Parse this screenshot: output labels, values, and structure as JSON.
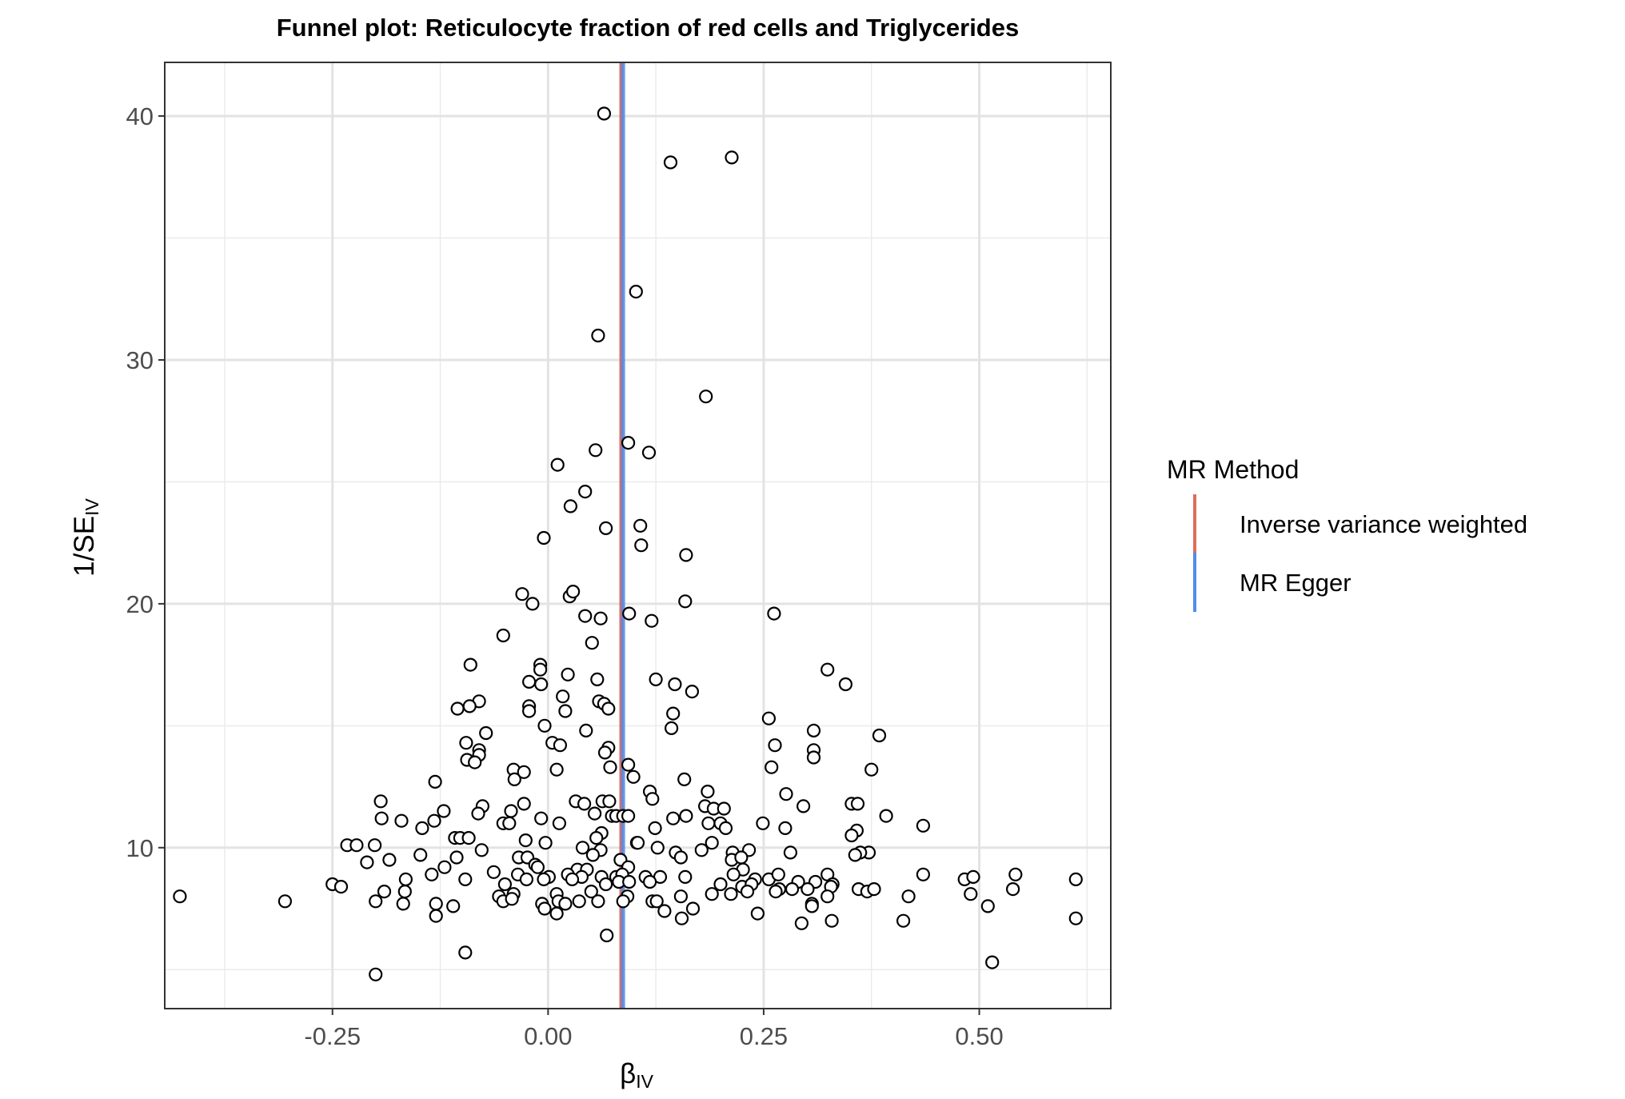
{
  "chart_data": {
    "type": "scatter",
    "title": "Funnel plot: Reticulocyte fraction of red cells and Triglycerides",
    "xlabel": {
      "main": "β",
      "sub": "IV"
    },
    "ylabel": {
      "main": "1/SE",
      "sub": "IV"
    },
    "xlim": [
      -0.4445,
      0.6525
    ],
    "ylim": [
      3.4,
      42.2
    ],
    "x_ticks": [
      -0.25,
      0.0,
      0.25,
      0.5
    ],
    "x_tick_labels": [
      "-0.25",
      "0.00",
      "0.25",
      "0.50"
    ],
    "y_ticks": [
      10,
      20,
      30,
      40
    ],
    "y_tick_labels": [
      "10",
      "20",
      "30",
      "40"
    ],
    "grid": true,
    "legend": {
      "title": "MR Method",
      "position": "right",
      "items": [
        {
          "label": "Inverse variance weighted",
          "color": "#E06C5C"
        },
        {
          "label": "MR Egger",
          "color": "#4F8DEB"
        }
      ]
    },
    "reference_lines": [
      {
        "method": "Inverse variance weighted",
        "x": 0.085,
        "color": "#E06C5C"
      },
      {
        "method": "MR Egger",
        "x": 0.087,
        "color": "#4F8DEB"
      }
    ],
    "points": [
      [
        0.065,
        40.1
      ],
      [
        0.142,
        38.1
      ],
      [
        0.213,
        38.3
      ],
      [
        0.102,
        32.8
      ],
      [
        0.058,
        31.0
      ],
      [
        0.183,
        28.5
      ],
      [
        0.093,
        26.6
      ],
      [
        0.117,
        26.2
      ],
      [
        0.055,
        26.3
      ],
      [
        0.011,
        25.7
      ],
      [
        0.043,
        24.6
      ],
      [
        0.026,
        24.0
      ],
      [
        0.067,
        23.1
      ],
      [
        0.107,
        23.2
      ],
      [
        -0.005,
        22.7
      ],
      [
        0.108,
        22.4
      ],
      [
        0.16,
        22.0
      ],
      [
        -0.03,
        20.4
      ],
      [
        -0.018,
        20.0
      ],
      [
        0.025,
        20.3
      ],
      [
        0.029,
        20.5
      ],
      [
        0.043,
        19.5
      ],
      [
        0.061,
        19.4
      ],
      [
        0.094,
        19.6
      ],
      [
        0.12,
        19.3
      ],
      [
        0.159,
        20.1
      ],
      [
        0.262,
        19.6
      ],
      [
        -0.052,
        18.7
      ],
      [
        0.051,
        18.4
      ],
      [
        -0.09,
        17.5
      ],
      [
        -0.009,
        17.5
      ],
      [
        -0.009,
        17.3
      ],
      [
        0.023,
        17.1
      ],
      [
        0.324,
        17.3
      ],
      [
        -0.022,
        16.8
      ],
      [
        -0.008,
        16.7
      ],
      [
        0.057,
        16.9
      ],
      [
        0.125,
        16.9
      ],
      [
        0.147,
        16.7
      ],
      [
        0.345,
        16.7
      ],
      [
        0.017,
        16.2
      ],
      [
        0.167,
        16.4
      ],
      [
        -0.08,
        16.0
      ],
      [
        -0.091,
        15.8
      ],
      [
        -0.105,
        15.7
      ],
      [
        -0.022,
        15.8
      ],
      [
        -0.022,
        15.6
      ],
      [
        0.02,
        15.6
      ],
      [
        0.059,
        16.0
      ],
      [
        0.065,
        15.9
      ],
      [
        0.07,
        15.7
      ],
      [
        0.145,
        15.5
      ],
      [
        0.256,
        15.3
      ],
      [
        -0.004,
        15.0
      ],
      [
        0.143,
        14.9
      ],
      [
        -0.072,
        14.7
      ],
      [
        0.044,
        14.8
      ],
      [
        0.308,
        14.8
      ],
      [
        0.384,
        14.6
      ],
      [
        -0.095,
        14.3
      ],
      [
        0.005,
        14.3
      ],
      [
        0.014,
        14.2
      ],
      [
        0.07,
        14.1
      ],
      [
        0.263,
        14.2
      ],
      [
        -0.08,
        14.0
      ],
      [
        -0.08,
        13.8
      ],
      [
        0.066,
        13.9
      ],
      [
        0.308,
        14.0
      ],
      [
        -0.094,
        13.6
      ],
      [
        -0.085,
        13.5
      ],
      [
        0.308,
        13.7
      ],
      [
        0.072,
        13.3
      ],
      [
        0.093,
        13.4
      ],
      [
        0.259,
        13.3
      ],
      [
        0.375,
        13.2
      ],
      [
        -0.04,
        13.2
      ],
      [
        -0.028,
        13.1
      ],
      [
        0.01,
        13.2
      ],
      [
        -0.039,
        12.8
      ],
      [
        0.099,
        12.9
      ],
      [
        0.158,
        12.8
      ],
      [
        -0.131,
        12.7
      ],
      [
        0.118,
        12.3
      ],
      [
        0.185,
        12.3
      ],
      [
        0.276,
        12.2
      ],
      [
        0.032,
        11.9
      ],
      [
        0.042,
        11.8
      ],
      [
        0.063,
        11.9
      ],
      [
        0.071,
        11.9
      ],
      [
        0.121,
        12.0
      ],
      [
        0.296,
        11.7
      ],
      [
        0.352,
        11.8
      ],
      [
        0.359,
        11.8
      ],
      [
        -0.194,
        11.9
      ],
      [
        -0.076,
        11.7
      ],
      [
        -0.028,
        11.8
      ],
      [
        0.182,
        11.7
      ],
      [
        0.192,
        11.6
      ],
      [
        0.204,
        11.6
      ],
      [
        -0.081,
        11.4
      ],
      [
        -0.043,
        11.5
      ],
      [
        -0.121,
        11.5
      ],
      [
        0.054,
        11.4
      ],
      [
        0.074,
        11.3
      ],
      [
        0.079,
        11.3
      ],
      [
        0.087,
        11.3
      ],
      [
        0.093,
        11.3
      ],
      [
        0.16,
        11.3
      ],
      [
        0.145,
        11.2
      ],
      [
        -0.193,
        11.2
      ],
      [
        -0.17,
        11.1
      ],
      [
        -0.132,
        11.1
      ],
      [
        -0.052,
        11.0
      ],
      [
        -0.045,
        11.0
      ],
      [
        -0.008,
        11.2
      ],
      [
        0.013,
        11.0
      ],
      [
        0.186,
        11.0
      ],
      [
        0.2,
        11.0
      ],
      [
        0.206,
        10.8
      ],
      [
        0.124,
        10.8
      ],
      [
        0.392,
        11.3
      ],
      [
        0.249,
        11.0
      ],
      [
        0.435,
        10.9
      ],
      [
        -0.146,
        10.8
      ],
      [
        0.275,
        10.8
      ],
      [
        0.358,
        10.7
      ],
      [
        0.062,
        10.6
      ],
      [
        -0.108,
        10.4
      ],
      [
        -0.102,
        10.4
      ],
      [
        -0.092,
        10.4
      ],
      [
        0.056,
        10.4
      ],
      [
        0.352,
        10.5
      ],
      [
        -0.026,
        10.3
      ],
      [
        0.103,
        10.2
      ],
      [
        0.19,
        10.2
      ],
      [
        -0.003,
        10.2
      ],
      [
        -0.233,
        10.1
      ],
      [
        -0.222,
        10.1
      ],
      [
        -0.201,
        10.1
      ],
      [
        0.04,
        10.0
      ],
      [
        0.127,
        10.0
      ],
      [
        0.178,
        9.9
      ],
      [
        -0.077,
        9.9
      ],
      [
        0.104,
        10.2
      ],
      [
        0.061,
        9.9
      ],
      [
        0.148,
        9.8
      ],
      [
        -0.148,
        9.7
      ],
      [
        0.214,
        9.8
      ],
      [
        0.372,
        9.8
      ],
      [
        0.362,
        9.8
      ],
      [
        -0.106,
        9.6
      ],
      [
        -0.034,
        9.6
      ],
      [
        0.052,
        9.7
      ],
      [
        0.154,
        9.6
      ],
      [
        0.233,
        9.9
      ],
      [
        0.281,
        9.8
      ],
      [
        0.356,
        9.7
      ],
      [
        -0.024,
        9.6
      ],
      [
        -0.015,
        9.3
      ],
      [
        0.084,
        9.5
      ],
      [
        0.213,
        9.5
      ],
      [
        0.224,
        9.6
      ],
      [
        -0.184,
        9.5
      ],
      [
        -0.21,
        9.4
      ],
      [
        -0.012,
        9.2
      ],
      [
        0.093,
        9.2
      ],
      [
        -0.12,
        9.2
      ],
      [
        0.034,
        9.1
      ],
      [
        0.045,
        9.1
      ],
      [
        0.226,
        9.1
      ],
      [
        0.324,
        8.9
      ],
      [
        0.435,
        8.9
      ],
      [
        0.542,
        8.9
      ],
      [
        -0.135,
        8.9
      ],
      [
        -0.063,
        9.0
      ],
      [
        -0.035,
        8.9
      ],
      [
        -0.025,
        8.7
      ],
      [
        0.001,
        8.8
      ],
      [
        0.023,
        8.9
      ],
      [
        0.039,
        8.8
      ],
      [
        0.062,
        8.8
      ],
      [
        0.079,
        8.8
      ],
      [
        0.086,
        8.9
      ],
      [
        0.113,
        8.8
      ],
      [
        0.13,
        8.8
      ],
      [
        0.159,
        8.8
      ],
      [
        0.215,
        8.9
      ],
      [
        0.24,
        8.7
      ],
      [
        0.256,
        8.7
      ],
      [
        0.267,
        8.9
      ],
      [
        0.29,
        8.6
      ],
      [
        0.31,
        8.6
      ],
      [
        0.33,
        8.5
      ],
      [
        0.483,
        8.7
      ],
      [
        0.493,
        8.8
      ],
      [
        0.612,
        8.7
      ],
      [
        -0.165,
        8.7
      ],
      [
        -0.096,
        8.7
      ],
      [
        -0.05,
        8.5
      ],
      [
        -0.005,
        8.7
      ],
      [
        0.028,
        8.7
      ],
      [
        0.067,
        8.5
      ],
      [
        0.082,
        8.6
      ],
      [
        0.094,
        8.6
      ],
      [
        0.118,
        8.6
      ],
      [
        0.2,
        8.5
      ],
      [
        0.225,
        8.4
      ],
      [
        0.236,
        8.5
      ],
      [
        0.268,
        8.3
      ],
      [
        0.283,
        8.3
      ],
      [
        0.301,
        8.3
      ],
      [
        0.328,
        8.4
      ],
      [
        0.36,
        8.3
      ],
      [
        0.37,
        8.2
      ],
      [
        0.378,
        8.3
      ],
      [
        0.539,
        8.3
      ],
      [
        -0.25,
        8.5
      ],
      [
        -0.24,
        8.4
      ],
      [
        -0.19,
        8.2
      ],
      [
        -0.166,
        8.2
      ],
      [
        -0.04,
        8.1
      ],
      [
        0.01,
        8.1
      ],
      [
        0.05,
        8.2
      ],
      [
        0.092,
        8.0
      ],
      [
        0.154,
        8.0
      ],
      [
        0.19,
        8.1
      ],
      [
        0.212,
        8.1
      ],
      [
        0.231,
        8.2
      ],
      [
        0.264,
        8.2
      ],
      [
        0.324,
        8.0
      ],
      [
        -0.427,
        8.0
      ],
      [
        -0.305,
        7.8
      ],
      [
        -0.2,
        7.8
      ],
      [
        -0.168,
        7.7
      ],
      [
        -0.13,
        7.7
      ],
      [
        -0.11,
        7.6
      ],
      [
        -0.057,
        8.0
      ],
      [
        -0.052,
        7.8
      ],
      [
        -0.042,
        7.9
      ],
      [
        -0.007,
        7.7
      ],
      [
        0.012,
        7.8
      ],
      [
        0.02,
        7.7
      ],
      [
        0.036,
        7.8
      ],
      [
        0.058,
        7.8
      ],
      [
        0.087,
        7.8
      ],
      [
        0.121,
        7.8
      ],
      [
        0.126,
        7.8
      ],
      [
        0.306,
        7.7
      ],
      [
        0.306,
        7.6
      ],
      [
        0.418,
        8.0
      ],
      [
        0.49,
        8.1
      ],
      [
        0.51,
        7.6
      ],
      [
        -0.004,
        7.5
      ],
      [
        0.01,
        7.3
      ],
      [
        0.135,
        7.4
      ],
      [
        0.168,
        7.5
      ],
      [
        0.243,
        7.3
      ],
      [
        0.294,
        6.9
      ],
      [
        0.329,
        7.0
      ],
      [
        0.412,
        7.0
      ],
      [
        0.612,
        7.1
      ],
      [
        -0.13,
        7.2
      ],
      [
        0.155,
        7.1
      ],
      [
        0.068,
        6.4
      ],
      [
        -0.096,
        5.7
      ],
      [
        0.515,
        5.3
      ],
      [
        -0.2,
        4.8
      ]
    ]
  }
}
